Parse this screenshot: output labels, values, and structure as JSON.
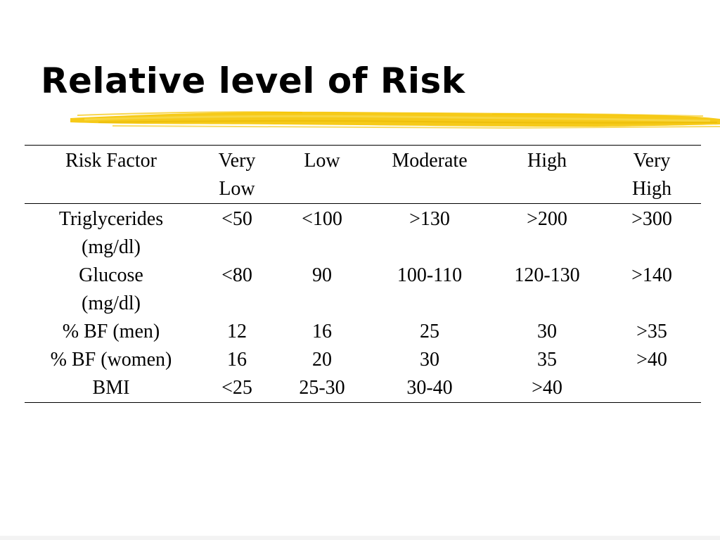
{
  "slide": {
    "title": "Relative level of Risk",
    "accent_color": "#f5c400"
  },
  "table": {
    "headers": [
      [
        "Risk Factor"
      ],
      [
        "Very",
        "Low"
      ],
      [
        "Low"
      ],
      [
        "Moderate"
      ],
      [
        "High"
      ],
      [
        "Very",
        "High"
      ]
    ],
    "rows": [
      {
        "factor": [
          "Triglycerides",
          "(mg/dl)"
        ],
        "values": [
          "<50",
          "<100",
          ">130",
          ">200",
          ">300"
        ]
      },
      {
        "factor": [
          "Glucose",
          "(mg/dl)"
        ],
        "values": [
          "<80",
          "90",
          "100-110",
          "120-130",
          ">140"
        ]
      },
      {
        "factor": [
          "% BF (men)"
        ],
        "values": [
          "12",
          "16",
          "25",
          "30",
          ">35"
        ]
      },
      {
        "factor": [
          "% BF (women)"
        ],
        "values": [
          "16",
          "20",
          "30",
          "35",
          ">40"
        ]
      },
      {
        "factor": [
          "BMI"
        ],
        "values": [
          "<25",
          "25-30",
          "30-40",
          ">40",
          ""
        ]
      }
    ]
  }
}
